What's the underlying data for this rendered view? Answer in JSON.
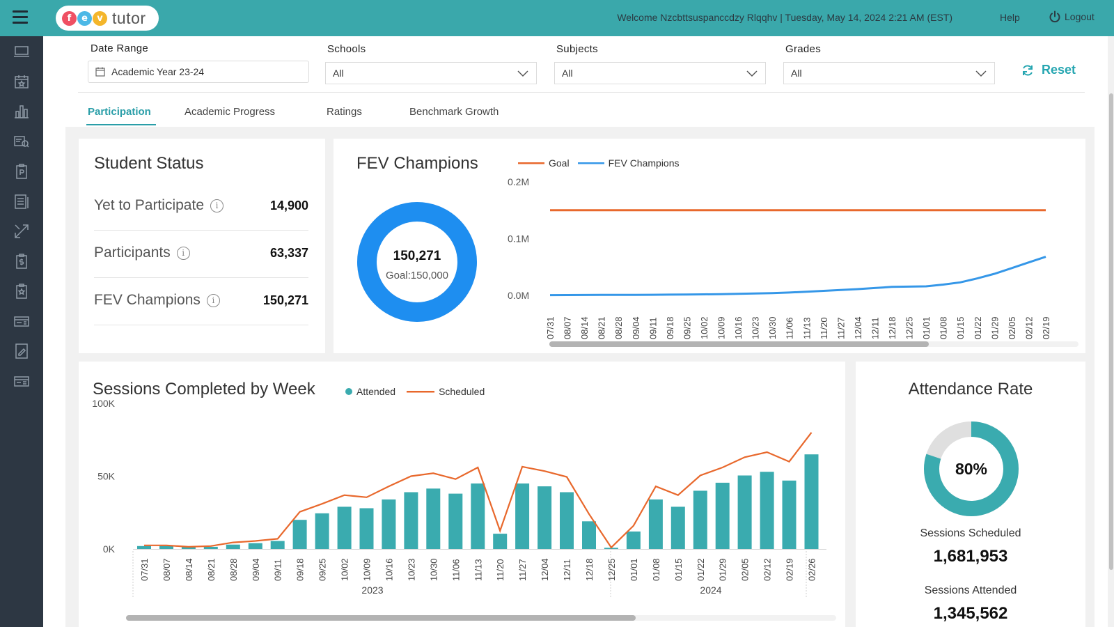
{
  "header": {
    "logo_letters": [
      "f",
      "e",
      "v"
    ],
    "logo_text": "tutor",
    "welcome": "Welcome Nzcbttsuspanccdzy Rlqqhv |  Tuesday, May 14, 2024 2:21 AM (EST)",
    "help": "Help",
    "logout": "Logout"
  },
  "sidebar": {
    "icons": [
      "monitor-icon",
      "calendar-star-icon",
      "bar-chart-icon",
      "folder-search-icon",
      "clipboard-p-icon",
      "document-list-icon",
      "expand-arrows-icon",
      "clipboard-dollar-icon",
      "clipboard-star-icon",
      "id-card-icon",
      "edit-document-icon",
      "id-card-alt-icon"
    ]
  },
  "filters": {
    "date_range": {
      "label": "Date Range",
      "value": "Academic Year 23-24"
    },
    "schools": {
      "label": "Schools",
      "value": "All"
    },
    "subjects": {
      "label": "Subjects",
      "value": "All"
    },
    "grades": {
      "label": "Grades",
      "value": "All"
    },
    "reset": "Reset"
  },
  "tabs": [
    {
      "label": "Participation",
      "active": true
    },
    {
      "label": "Academic Progress",
      "active": false
    },
    {
      "label": "Ratings",
      "active": false
    },
    {
      "label": "Benchmark Growth",
      "active": false
    }
  ],
  "student_status": {
    "title": "Student Status",
    "info_glyph": "i",
    "rows": [
      {
        "label": "Yet to Participate",
        "value": "14,900"
      },
      {
        "label": "Participants",
        "value": "63,337"
      },
      {
        "label": "FEV Champions",
        "value": "150,271"
      }
    ]
  },
  "champions": {
    "title": "FEV Champions",
    "donut_value": "150,271",
    "donut_goal": "Goal:150,000",
    "donut_ratio": 1.0,
    "legend": [
      {
        "name": "Goal",
        "color": "#e8682c"
      },
      {
        "name": "FEV Champions",
        "color": "#3597e8"
      }
    ],
    "chart_data": {
      "type": "line",
      "title": "FEV Champions",
      "y_ticks": [
        "0.2M",
        "0.1M",
        "0.0M"
      ],
      "ylim": [
        0,
        200000
      ],
      "x": [
        "07/31",
        "08/07",
        "08/14",
        "08/21",
        "08/28",
        "09/04",
        "09/11",
        "09/18",
        "09/25",
        "10/02",
        "10/09",
        "10/16",
        "10/23",
        "10/30",
        "11/06",
        "11/13",
        "11/20",
        "11/27",
        "12/04",
        "12/11",
        "12/18",
        "12/25",
        "01/01",
        "01/08",
        "01/15",
        "01/22",
        "01/29",
        "02/05",
        "02/12",
        "02/19"
      ],
      "series": [
        {
          "name": "Goal",
          "values": [
            150000,
            150000,
            150000,
            150000,
            150000,
            150000,
            150000,
            150000,
            150000,
            150000,
            150000,
            150000,
            150000,
            150000,
            150000,
            150000,
            150000,
            150000,
            150000,
            150000,
            150000,
            150000,
            150000,
            150000,
            150000,
            150000,
            150000,
            150000,
            150000,
            150000
          ]
        },
        {
          "name": "FEV Champions",
          "values": [
            500,
            600,
            700,
            800,
            900,
            1000,
            1100,
            1300,
            1500,
            1800,
            2200,
            2700,
            3300,
            4000,
            5000,
            6500,
            8000,
            9500,
            11000,
            13000,
            15000,
            15500,
            16000,
            19000,
            23000,
            30000,
            38000,
            48000,
            58000,
            68000
          ]
        }
      ]
    }
  },
  "sessions": {
    "title": "Sessions Completed by Week",
    "legend": [
      {
        "name": "Attended",
        "color": "#3aabaf"
      },
      {
        "name": "Scheduled",
        "color": "#e8682c"
      }
    ],
    "chart_data": {
      "type": "bar",
      "title": "Sessions Completed by Week",
      "y_ticks": [
        "100K",
        "50K",
        "0K"
      ],
      "ylim": [
        0,
        100000
      ],
      "year_labels": [
        "2023",
        "2024"
      ],
      "categories": [
        "07/31",
        "08/07",
        "08/14",
        "08/21",
        "08/28",
        "09/04",
        "09/11",
        "09/18",
        "09/25",
        "10/02",
        "10/09",
        "10/16",
        "10/23",
        "10/30",
        "11/06",
        "11/13",
        "11/20",
        "11/27",
        "12/04",
        "12/11",
        "12/18",
        "12/25",
        "01/01",
        "01/08",
        "01/15",
        "01/22",
        "01/29",
        "02/05",
        "02/12",
        "02/19",
        "02/26"
      ],
      "series": [
        {
          "name": "Attended",
          "type": "bar",
          "values": [
            2000,
            2000,
            1500,
            1500,
            3000,
            4000,
            5500,
            20000,
            24500,
            29000,
            28000,
            34000,
            39000,
            41500,
            38000,
            45000,
            10500,
            45000,
            43000,
            39000,
            19000,
            800,
            12000,
            34000,
            29000,
            40000,
            45500,
            50500,
            53000,
            47000,
            65000
          ]
        },
        {
          "name": "Scheduled",
          "type": "line",
          "values": [
            2500,
            2500,
            1500,
            2000,
            4500,
            5500,
            7000,
            25500,
            31000,
            37000,
            35500,
            43000,
            50000,
            52000,
            48000,
            56000,
            12500,
            56500,
            53500,
            49500,
            24000,
            1000,
            16000,
            43000,
            37000,
            50500,
            56000,
            63000,
            66500,
            60000,
            80000
          ]
        }
      ]
    }
  },
  "attendance": {
    "title": "Attendance Rate",
    "rate": "80%",
    "rate_value": 0.8,
    "scheduled_label": "Sessions Scheduled",
    "scheduled_value": "1,681,953",
    "attended_label": "Sessions Attended",
    "attended_value": "1,345,562"
  },
  "colors": {
    "teal": "#3aa8ab",
    "orange": "#e8682c",
    "blue": "#3597e8",
    "sidebar": "#2d3743"
  }
}
